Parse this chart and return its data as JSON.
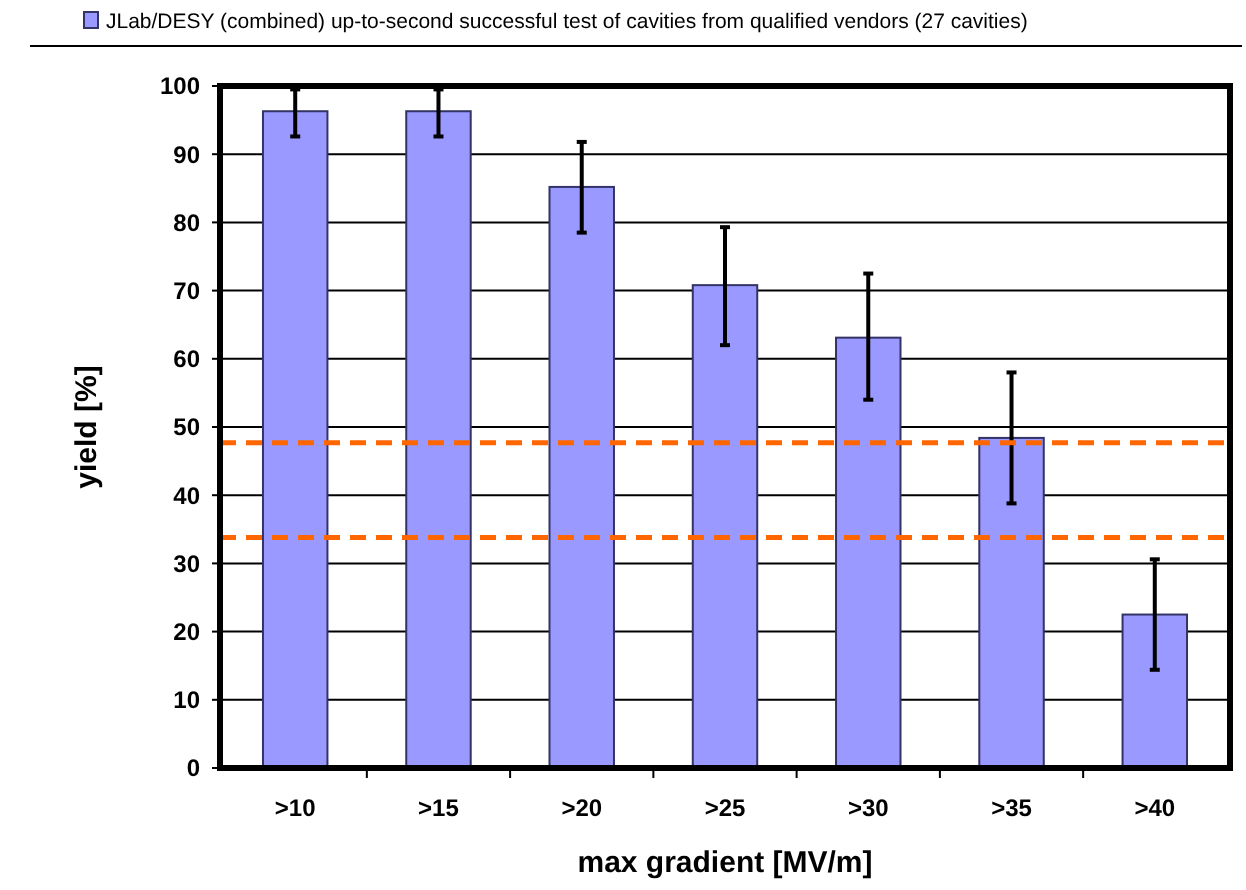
{
  "chart_data": {
    "type": "bar",
    "categories": [
      ">10",
      ">15",
      ">20",
      ">25",
      ">30",
      ">35",
      ">40"
    ],
    "series": [
      {
        "name": "JLab/DESY (combined) up-to-second successful test of cavities from qualified vendors (27 cavities)",
        "color": "#9999ff",
        "values": [
          96.3,
          96.3,
          85.2,
          70.8,
          63.1,
          48.4,
          22.5
        ],
        "errors": [
          [
            92.6,
            99.5
          ],
          [
            92.6,
            99.5
          ],
          [
            78.5,
            91.8
          ],
          [
            62.0,
            79.3
          ],
          [
            54.0,
            72.5
          ],
          [
            38.8,
            58.0
          ],
          [
            14.4,
            30.6
          ]
        ]
      }
    ],
    "xlabel": "max gradient [MV/m]",
    "ylabel": "yield [%]",
    "ylim": [
      0,
      100
    ],
    "yticks": [
      0,
      10,
      20,
      30,
      40,
      50,
      60,
      70,
      80,
      90,
      100
    ],
    "grid": "y",
    "legend": "top",
    "ref_lines": [
      {
        "axis": "y",
        "value": 33.8,
        "color": "#ff6600",
        "line_style": "dashed"
      },
      {
        "axis": "y",
        "value": 47.7,
        "color": "#ff6600",
        "line_style": "dashed"
      }
    ]
  }
}
